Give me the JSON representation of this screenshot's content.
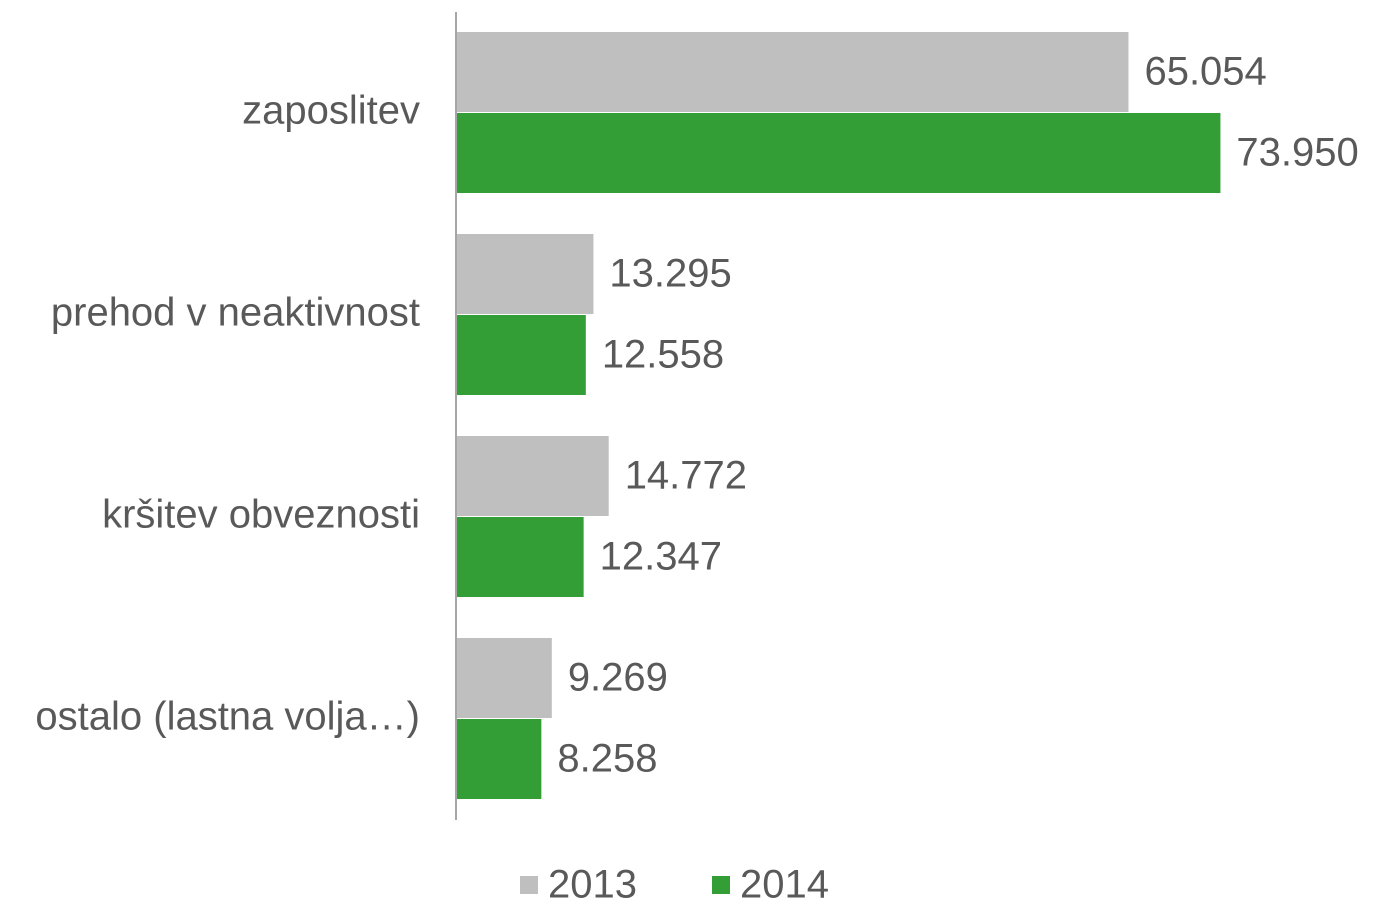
{
  "chart_data": {
    "type": "bar",
    "orientation": "horizontal",
    "categories": [
      "zaposlitev",
      "prehod v neaktivnost",
      "kršitev obveznosti",
      "ostalo (lastna volja…)"
    ],
    "series": [
      {
        "name": "2013",
        "color": "#bfbfbf",
        "values": [
          65054,
          13295,
          14772,
          9269
        ],
        "value_labels": [
          "65.054",
          "13.295",
          "14.772",
          "9.269"
        ]
      },
      {
        "name": "2014",
        "color": "#339e35",
        "values": [
          73950,
          12558,
          12347,
          8258
        ],
        "value_labels": [
          "73.950",
          "12.558",
          "12.347",
          "8.258"
        ]
      }
    ],
    "xlim": [
      0,
      89000
    ],
    "legend": "bottom"
  }
}
